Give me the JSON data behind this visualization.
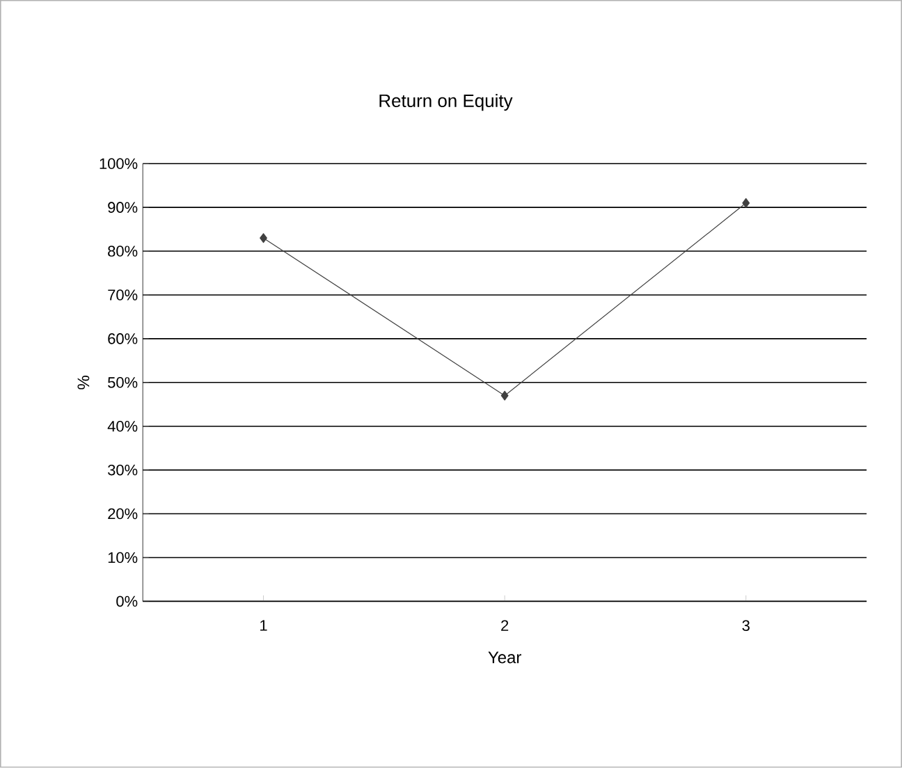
{
  "chart_data": {
    "type": "line",
    "title": "Return on Equity",
    "xlabel": "Year",
    "ylabel": "%",
    "categories": [
      "1",
      "2",
      "3"
    ],
    "series": [
      {
        "color": "#404040",
        "values": [
          83,
          47,
          91
        ]
      }
    ],
    "ylim": [
      0,
      100
    ],
    "yticks": [
      {
        "value": 0,
        "label": "0%"
      },
      {
        "value": 10,
        "label": "10%"
      },
      {
        "value": 20,
        "label": "20%"
      },
      {
        "value": 30,
        "label": "30%"
      },
      {
        "value": 40,
        "label": "40%"
      },
      {
        "value": 50,
        "label": "50%"
      },
      {
        "value": 60,
        "label": "60%"
      },
      {
        "value": 70,
        "label": "70%"
      },
      {
        "value": 80,
        "label": "80%"
      },
      {
        "value": 90,
        "label": "90%"
      },
      {
        "value": 100,
        "label": "100%"
      }
    ],
    "grid": "y",
    "marker": "diamond",
    "line_style": "solid"
  }
}
